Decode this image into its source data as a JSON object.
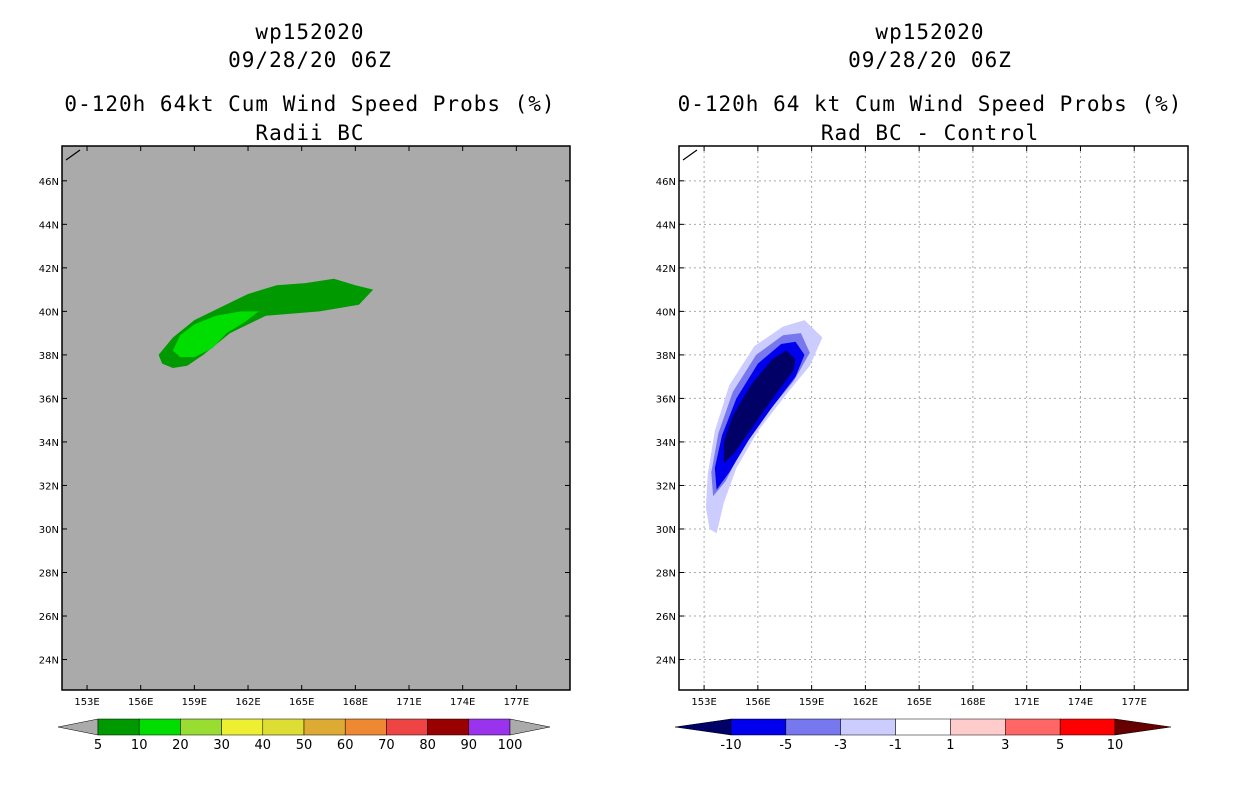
{
  "left": {
    "storm": "wp152020",
    "datetime": "09/28/20 06Z",
    "title": "0-120h 64kt Cum Wind Speed Probs (%)",
    "subtitle": "Radii BC",
    "background": "#aaaaaa",
    "colorbar": {
      "colors": [
        "#009900",
        "#00dd00",
        "#99dd33",
        "#eeee33",
        "#dddd33",
        "#ddaa33",
        "#ee8833",
        "#ee4444",
        "#990000",
        "#9933ee"
      ],
      "labels": [
        "5",
        "10",
        "20",
        "30",
        "40",
        "50",
        "60",
        "70",
        "80",
        "90",
        "100"
      ]
    }
  },
  "right": {
    "storm": "wp152020",
    "datetime": "09/28/20 06Z",
    "title": "0-120h 64 kt Cum Wind Speed Probs (%)",
    "subtitle": "Rad BC - Control",
    "background": "#ffffff",
    "colorbar": {
      "colors": [
        "#000066",
        "#0000ee",
        "#7777ee",
        "#ccccff",
        "#ffffff",
        "#ffcccc",
        "#ff6666",
        "#ff0000",
        "#660000"
      ],
      "labels": [
        "-10",
        "-5",
        "-3",
        "-1",
        "1",
        "3",
        "5",
        "10"
      ]
    }
  },
  "chart_data": [
    {
      "type": "heatmap",
      "title": "0-120h 64kt Cum Wind Speed Probs (%)",
      "subtitle": "Radii BC",
      "x_ticks": [
        "153E",
        "156E",
        "159E",
        "162E",
        "165E",
        "168E",
        "171E",
        "174E",
        "177E"
      ],
      "y_ticks": [
        "24N",
        "26N",
        "28N",
        "30N",
        "32N",
        "34N",
        "36N",
        "38N",
        "40N",
        "42N",
        "44N",
        "46N"
      ],
      "xlim": [
        151.6,
        180.0
      ],
      "ylim": [
        22.6,
        47.6
      ],
      "contours": [
        {
          "level": 5,
          "color": "#009900",
          "points": [
            [
              157.0,
              38.0
            ],
            [
              157.8,
              38.8
            ],
            [
              159.0,
              39.6
            ],
            [
              160.5,
              40.2
            ],
            [
              162.0,
              40.8
            ],
            [
              163.6,
              41.2
            ],
            [
              165.2,
              41.3
            ],
            [
              166.8,
              41.5
            ],
            [
              168.0,
              41.2
            ],
            [
              169.0,
              41.0
            ],
            [
              168.2,
              40.3
            ],
            [
              166.0,
              40.0
            ],
            [
              163.0,
              39.8
            ],
            [
              161.0,
              39.0
            ],
            [
              159.5,
              38.0
            ],
            [
              158.6,
              37.5
            ],
            [
              157.8,
              37.4
            ],
            [
              157.2,
              37.6
            ]
          ]
        },
        {
          "level": 10,
          "color": "#00dd00",
          "points": [
            [
              157.8,
              38.2
            ],
            [
              158.2,
              38.9
            ],
            [
              159.0,
              39.4
            ],
            [
              160.2,
              39.8
            ],
            [
              161.6,
              40.0
            ],
            [
              162.6,
              40.0
            ],
            [
              161.8,
              39.5
            ],
            [
              160.8,
              39.0
            ],
            [
              160.0,
              38.3
            ],
            [
              159.0,
              37.9
            ],
            [
              158.2,
              37.9
            ]
          ]
        }
      ]
    },
    {
      "type": "heatmap",
      "title": "0-120h 64 kt Cum Wind Speed Probs (%)",
      "subtitle": "Rad BC - Control",
      "x_ticks": [
        "153E",
        "156E",
        "159E",
        "162E",
        "165E",
        "168E",
        "171E",
        "174E",
        "177E"
      ],
      "y_ticks": [
        "24N",
        "26N",
        "28N",
        "30N",
        "32N",
        "34N",
        "36N",
        "38N",
        "40N",
        "42N",
        "44N",
        "46N"
      ],
      "xlim": [
        151.6,
        180.0
      ],
      "ylim": [
        22.6,
        47.6
      ],
      "contours": [
        {
          "level": -1,
          "color": "#ccccff",
          "points": [
            [
              153.3,
              30.0
            ],
            [
              153.7,
              29.8
            ],
            [
              154.1,
              31.2
            ],
            [
              154.8,
              32.8
            ],
            [
              156.0,
              34.5
            ],
            [
              157.6,
              36.2
            ],
            [
              158.9,
              37.5
            ],
            [
              159.6,
              38.8
            ],
            [
              158.6,
              39.6
            ],
            [
              157.4,
              39.3
            ],
            [
              155.8,
              38.4
            ],
            [
              154.4,
              36.6
            ],
            [
              153.6,
              34.5
            ],
            [
              153.2,
              32.5
            ],
            [
              153.1,
              31.0
            ]
          ]
        },
        {
          "level": -3,
          "color": "#7777ee",
          "points": [
            [
              153.5,
              31.5
            ],
            [
              154.2,
              32.2
            ],
            [
              155.2,
              33.8
            ],
            [
              156.6,
              35.4
            ],
            [
              158.0,
              36.8
            ],
            [
              158.9,
              38.1
            ],
            [
              158.4,
              39.0
            ],
            [
              157.4,
              38.9
            ],
            [
              155.9,
              38.0
            ],
            [
              154.6,
              36.3
            ],
            [
              153.8,
              34.4
            ],
            [
              153.4,
              32.6
            ]
          ]
        },
        {
          "level": -5,
          "color": "#0000ee",
          "points": [
            [
              153.7,
              31.8
            ],
            [
              154.4,
              32.6
            ],
            [
              155.5,
              34.1
            ],
            [
              156.8,
              35.6
            ],
            [
              158.1,
              37.0
            ],
            [
              158.6,
              38.0
            ],
            [
              158.1,
              38.6
            ],
            [
              157.3,
              38.5
            ],
            [
              156.0,
              37.6
            ],
            [
              154.8,
              36.0
            ],
            [
              154.0,
              34.3
            ],
            [
              153.6,
              32.8
            ]
          ]
        },
        {
          "level": -10,
          "color": "#000066",
          "points": [
            [
              154.1,
              33.0
            ],
            [
              154.7,
              33.5
            ],
            [
              155.8,
              34.8
            ],
            [
              157.0,
              36.2
            ],
            [
              158.0,
              37.3
            ],
            [
              158.1,
              37.8
            ],
            [
              157.6,
              38.2
            ],
            [
              156.8,
              37.8
            ],
            [
              155.6,
              36.6
            ],
            [
              154.6,
              35.2
            ],
            [
              154.1,
              34.0
            ]
          ]
        }
      ]
    }
  ]
}
